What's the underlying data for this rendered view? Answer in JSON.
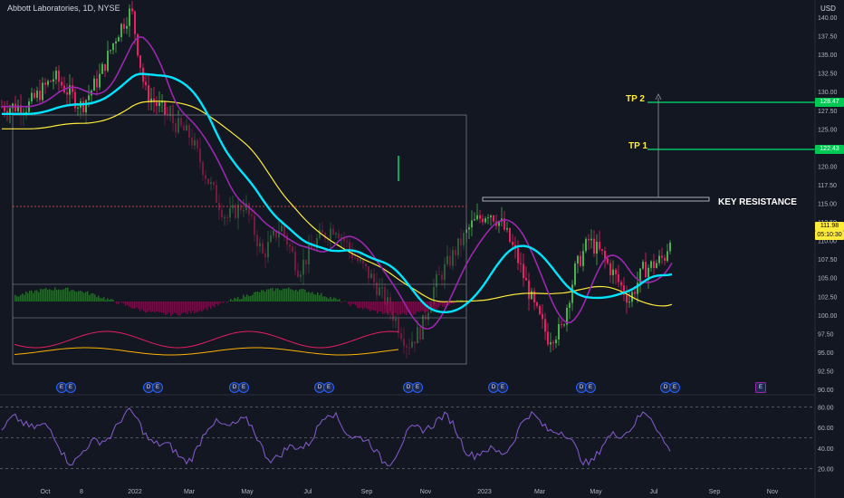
{
  "header": {
    "title": "Abbott Laboratories, 1D, NYSE",
    "currency": "USD"
  },
  "price_axis": {
    "labels": [
      "140.00",
      "137.50",
      "135.00",
      "132.50",
      "130.00",
      "127.50",
      "125.00",
      "122.50",
      "120.00",
      "117.50",
      "115.00",
      "112.50",
      "110.00",
      "107.50",
      "105.00",
      "102.50",
      "100.00",
      "97.50",
      "95.00",
      "92.50",
      "90.00"
    ]
  },
  "price_tags": {
    "tp2": "128.47",
    "tp1": "122.43",
    "last_price": "111.98",
    "countdown": "05:10:30",
    "tp2_color": "#00c853",
    "tp1_color": "#00c853",
    "last_color": "#ffeb3b"
  },
  "annotations": {
    "tp2": "TP 2",
    "tp1": "TP 1",
    "key_resistance": "KEY RESISTANCE"
  },
  "time_axis": {
    "labels": [
      "Oct",
      "8",
      "2022",
      "Mar",
      "May",
      "Jul",
      "Sep",
      "Nov",
      "2023",
      "Mar",
      "May",
      "Jul",
      "Sep",
      "Nov"
    ]
  },
  "rsi_axis": {
    "labels": [
      "80.00",
      "60.00",
      "40.00",
      "20.00"
    ]
  },
  "events": {
    "earnings_label": "E",
    "dividend_label": "D",
    "earnings_icon": "earnings-icon",
    "dividend_icon": "dividend-icon"
  },
  "colors": {
    "background": "#131722",
    "ma_cyan": "#00e5ff",
    "ma_purple": "#9c27b0",
    "ma_yellow": "#ffeb3b",
    "tp_line": "#00e676",
    "rsi_line": "#7e57c2",
    "candle_up": "#4caf50",
    "candle_down": "#e91e63"
  }
}
